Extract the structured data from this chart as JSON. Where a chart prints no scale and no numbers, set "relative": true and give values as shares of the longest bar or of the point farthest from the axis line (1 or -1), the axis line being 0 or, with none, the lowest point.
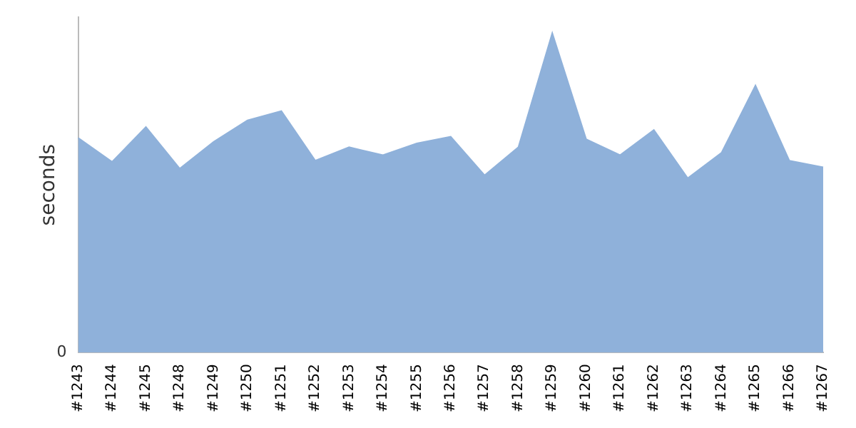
{
  "chart_data": {
    "type": "area",
    "ylabel": "seconds",
    "relative": true,
    "annotations": [
      "0"
    ],
    "grid": false,
    "legend": false,
    "color": "#8fb1da",
    "categories": [
      "#1243",
      "#1244",
      "#1245",
      "#1248",
      "#1249",
      "#1250",
      "#1251",
      "#1252",
      "#1253",
      "#1254",
      "#1255",
      "#1256",
      "#1257",
      "#1258",
      "#1259",
      "#1260",
      "#1261",
      "#1262",
      "#1263",
      "#1264",
      "#1265",
      "#1266",
      "#1267"
    ],
    "values": [
      0.672,
      0.597,
      0.706,
      0.576,
      0.66,
      0.727,
      0.756,
      0.601,
      0.643,
      0.618,
      0.655,
      0.676,
      0.555,
      0.643,
      1,
      0.668,
      0.618,
      0.697,
      0.546,
      0.626,
      0.836,
      0.601,
      0.58
    ]
  }
}
